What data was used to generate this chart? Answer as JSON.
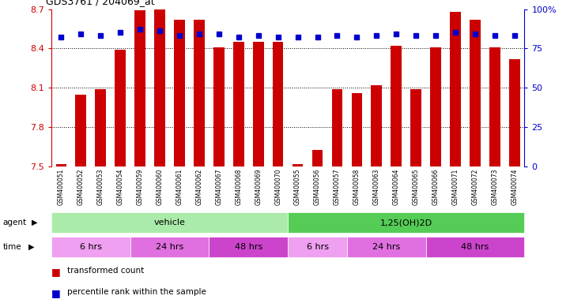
{
  "title": "GDS3761 / 204069_at",
  "samples": [
    "GSM400051",
    "GSM400052",
    "GSM400053",
    "GSM400054",
    "GSM400059",
    "GSM400060",
    "GSM400061",
    "GSM400062",
    "GSM400067",
    "GSM400068",
    "GSM400069",
    "GSM400070",
    "GSM400055",
    "GSM400056",
    "GSM400057",
    "GSM400058",
    "GSM400063",
    "GSM400064",
    "GSM400065",
    "GSM400066",
    "GSM400071",
    "GSM400072",
    "GSM400073",
    "GSM400074"
  ],
  "bar_values": [
    7.52,
    8.05,
    8.09,
    8.39,
    8.69,
    8.7,
    8.62,
    8.62,
    8.41,
    8.45,
    8.45,
    8.45,
    7.52,
    7.63,
    8.09,
    8.06,
    8.12,
    8.42,
    8.09,
    8.41,
    8.68,
    8.62,
    8.41,
    8.32
  ],
  "percentile_values": [
    82,
    84,
    83,
    85,
    87,
    86,
    83,
    84,
    84,
    82,
    83,
    82,
    82,
    82,
    83,
    82,
    83,
    84,
    83,
    83,
    85,
    84,
    83,
    83
  ],
  "bar_color": "#cc0000",
  "percentile_color": "#0000cc",
  "ymin": 7.5,
  "ymax": 8.7,
  "yticks": [
    7.5,
    7.8,
    8.1,
    8.4,
    8.7
  ],
  "right_ytick_vals": [
    0,
    25,
    50,
    75,
    100
  ],
  "right_ytick_labels": [
    "0",
    "25",
    "50",
    "75",
    "100%"
  ],
  "background_color": "#ffffff",
  "agent_groups": [
    {
      "label": "vehicle",
      "start": 0,
      "end": 12,
      "color": "#aaeaaa"
    },
    {
      "label": "1,25(OH)2D",
      "start": 12,
      "end": 24,
      "color": "#55cc55"
    }
  ],
  "time_groups": [
    {
      "label": "6 hrs",
      "start": 0,
      "end": 4,
      "color": "#f0a0f0"
    },
    {
      "label": "24 hrs",
      "start": 4,
      "end": 8,
      "color": "#e070e0"
    },
    {
      "label": "48 hrs",
      "start": 8,
      "end": 12,
      "color": "#cc44cc"
    },
    {
      "label": "6 hrs",
      "start": 12,
      "end": 15,
      "color": "#f0a0f0"
    },
    {
      "label": "24 hrs",
      "start": 15,
      "end": 19,
      "color": "#e070e0"
    },
    {
      "label": "48 hrs",
      "start": 19,
      "end": 24,
      "color": "#cc44cc"
    }
  ],
  "legend_bar_label": "transformed count",
  "legend_pct_label": "percentile rank within the sample"
}
